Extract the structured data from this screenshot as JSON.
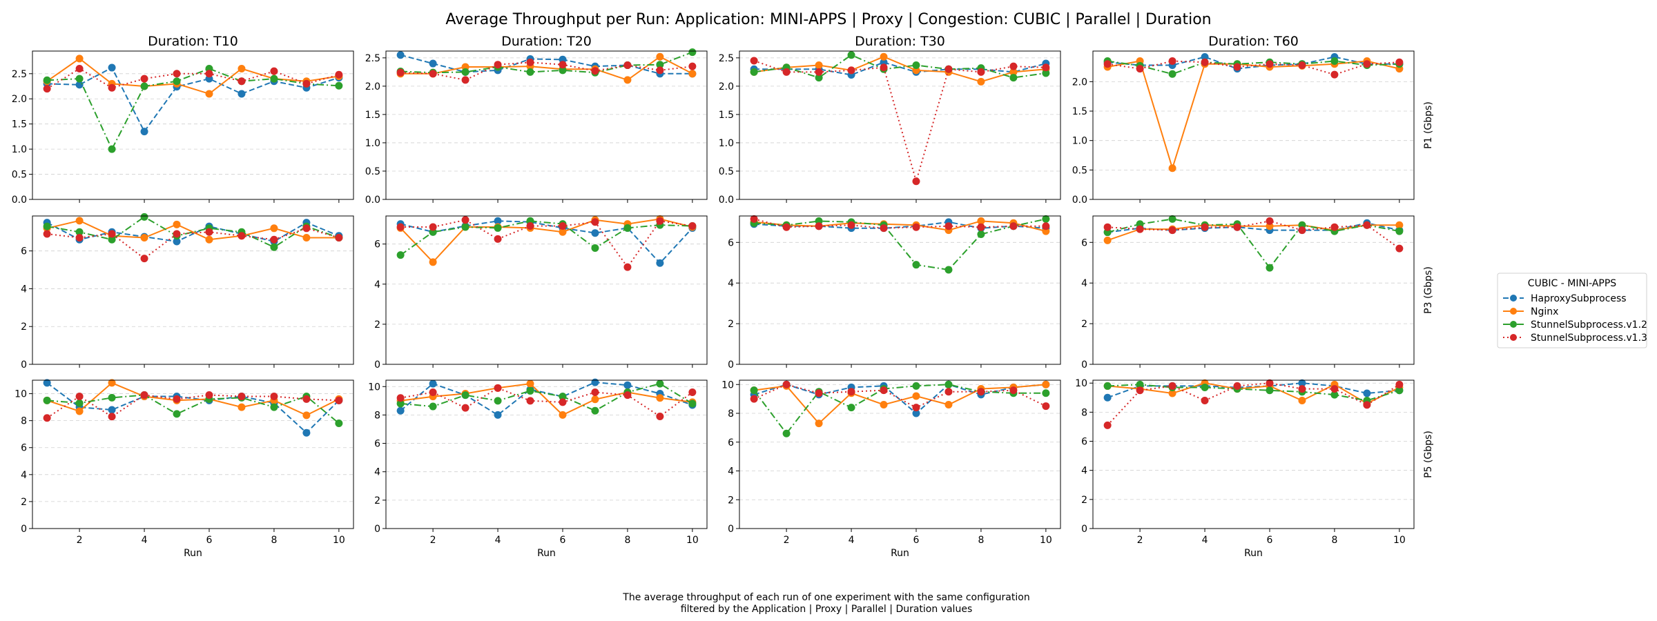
{
  "figure": {
    "title": "Average Throughput per Run: Application: MINI-APPS | Proxy | Congestion: CUBIC | Parallel | Duration",
    "caption_lines": [
      "The average throughput of each run of one experiment with the same configuration",
      "filtered by the Application | Proxy | Parallel | Duration values"
    ]
  },
  "legend": {
    "title": "CUBIC - MINI-APPS",
    "location": "right"
  },
  "chart_data": {
    "type": "line",
    "grid": "horizontal dashed",
    "column_titles": [
      "Duration: T10",
      "Duration: T20",
      "Duration: T30",
      "Duration: T60"
    ],
    "row_labels": [
      "P1 (Gbps)",
      "P3 (Gbps)",
      "P5 (Gbps)"
    ],
    "xlabel": "Run",
    "x": [
      1,
      2,
      3,
      4,
      5,
      6,
      7,
      8,
      9,
      10
    ],
    "x_ticks": [
      2,
      4,
      6,
      8,
      10
    ],
    "xlim": [
      0.55,
      10.45
    ],
    "series_styles": [
      {
        "name": "HaproxySubprocess",
        "color": "#1f77b4",
        "dash": "8,4"
      },
      {
        "name": "Nginx",
        "color": "#ff7f0e",
        "dash": ""
      },
      {
        "name": "StunnelSubprocess.v1.2",
        "color": "#2ca02c",
        "dash": "10,4,2,4"
      },
      {
        "name": "StunnelSubprocess.v1.3",
        "color": "#d62728",
        "dash": "2,4"
      }
    ],
    "panels": [
      {
        "row": 0,
        "col": 0,
        "ylim": [
          0,
          2.95
        ],
        "yticks": [
          "0.0",
          "0.5",
          "1.0",
          "1.5",
          "2.0",
          "2.5"
        ],
        "yvals": [
          0,
          0.5,
          1,
          1.5,
          2,
          2.5
        ],
        "series": [
          {
            "name": "HaproxySubprocess",
            "values": [
              2.3,
              2.28,
              2.62,
              1.35,
              2.24,
              2.4,
              2.1,
              2.35,
              2.22,
              2.42
            ]
          },
          {
            "name": "Nginx",
            "values": [
              2.35,
              2.8,
              2.3,
              2.25,
              2.3,
              2.1,
              2.6,
              2.4,
              2.35,
              2.45
            ]
          },
          {
            "name": "StunnelSubprocess.v1.2",
            "values": [
              2.37,
              2.4,
              1.0,
              2.25,
              2.35,
              2.6,
              2.35,
              2.4,
              2.3,
              2.26
            ]
          },
          {
            "name": "StunnelSubprocess.v1.3",
            "values": [
              2.2,
              2.6,
              2.22,
              2.4,
              2.5,
              2.5,
              2.35,
              2.55,
              2.3,
              2.48
            ]
          }
        ]
      },
      {
        "row": 0,
        "col": 1,
        "ylim": [
          0,
          2.62
        ],
        "yticks": [
          "0.0",
          "0.5",
          "1.0",
          "1.5",
          "2.0",
          "2.5"
        ],
        "yvals": [
          0,
          0.5,
          1,
          1.5,
          2,
          2.5
        ],
        "series": [
          {
            "name": "HaproxySubprocess",
            "values": [
              2.55,
              2.4,
              2.25,
              2.28,
              2.48,
              2.47,
              2.35,
              2.37,
              2.22,
              2.22
            ]
          },
          {
            "name": "Nginx",
            "values": [
              2.22,
              2.22,
              2.34,
              2.34,
              2.35,
              2.3,
              2.3,
              2.11,
              2.52,
              2.22
            ]
          },
          {
            "name": "StunnelSubprocess.v1.2",
            "values": [
              2.26,
              2.24,
              2.25,
              2.34,
              2.25,
              2.28,
              2.24,
              2.37,
              2.38,
              2.6
            ]
          },
          {
            "name": "StunnelSubprocess.v1.3",
            "values": [
              2.24,
              2.22,
              2.11,
              2.38,
              2.42,
              2.38,
              2.27,
              2.37,
              2.28,
              2.35
            ]
          }
        ]
      },
      {
        "row": 0,
        "col": 2,
        "ylim": [
          0,
          2.62
        ],
        "yticks": [
          "0.0",
          "0.5",
          "1.0",
          "1.5",
          "2.0",
          "2.5"
        ],
        "yvals": [
          0,
          0.5,
          1,
          1.5,
          2,
          2.5
        ],
        "series": [
          {
            "name": "HaproxySubprocess",
            "values": [
              2.3,
              2.3,
              2.3,
              2.2,
              2.42,
              2.25,
              2.3,
              2.3,
              2.25,
              2.4
            ]
          },
          {
            "name": "Nginx",
            "values": [
              2.25,
              2.33,
              2.37,
              2.28,
              2.52,
              2.28,
              2.25,
              2.08,
              2.25,
              2.3
            ]
          },
          {
            "name": "StunnelSubprocess.v1.2",
            "values": [
              2.25,
              2.33,
              2.15,
              2.55,
              2.3,
              2.37,
              2.3,
              2.32,
              2.15,
              2.23
            ]
          },
          {
            "name": "StunnelSubprocess.v1.3",
            "values": [
              2.45,
              2.25,
              2.25,
              2.28,
              2.33,
              0.32,
              2.3,
              2.25,
              2.35,
              2.33
            ]
          }
        ]
      },
      {
        "row": 0,
        "col": 3,
        "ylim": [
          0,
          2.52
        ],
        "yticks": [
          "0.0",
          "0.5",
          "1.0",
          "1.5",
          "2.0"
        ],
        "yvals": [
          0,
          0.5,
          1,
          1.5,
          2
        ],
        "series": [
          {
            "name": "HaproxySubprocess",
            "values": [
              2.33,
              2.28,
              2.28,
              2.42,
              2.22,
              2.28,
              2.3,
              2.42,
              2.3,
              2.3
            ]
          },
          {
            "name": "Nginx",
            "values": [
              2.25,
              2.35,
              0.53,
              2.3,
              2.3,
              2.25,
              2.27,
              2.3,
              2.35,
              2.22
            ]
          },
          {
            "name": "StunnelSubprocess.v1.2",
            "values": [
              2.35,
              2.27,
              2.13,
              2.33,
              2.3,
              2.33,
              2.3,
              2.35,
              2.28,
              2.3
            ]
          },
          {
            "name": "StunnelSubprocess.v1.3",
            "values": [
              2.3,
              2.22,
              2.35,
              2.33,
              2.25,
              2.3,
              2.28,
              2.12,
              2.3,
              2.33
            ]
          }
        ]
      },
      {
        "row": 1,
        "col": 0,
        "ylim": [
          0,
          7.85
        ],
        "yticks": [
          "0",
          "2",
          "4",
          "6"
        ],
        "yvals": [
          0,
          2,
          4,
          6
        ],
        "series": [
          {
            "name": "HaproxySubprocess",
            "values": [
              7.5,
              6.6,
              7.0,
              6.75,
              6.5,
              7.3,
              6.9,
              6.5,
              7.5,
              6.8
            ]
          },
          {
            "name": "Nginx",
            "values": [
              7.2,
              7.6,
              6.8,
              6.7,
              7.4,
              6.6,
              6.8,
              7.2,
              6.7,
              6.7
            ]
          },
          {
            "name": "StunnelSubprocess.v1.2",
            "values": [
              7.3,
              7.0,
              6.6,
              7.8,
              6.8,
              7.2,
              7.0,
              6.2,
              7.3,
              6.7
            ]
          },
          {
            "name": "StunnelSubprocess.v1.3",
            "values": [
              6.9,
              6.7,
              6.9,
              5.6,
              6.9,
              7.0,
              6.8,
              6.6,
              7.2,
              6.7
            ]
          }
        ]
      },
      {
        "row": 1,
        "col": 1,
        "ylim": [
          0,
          7.4
        ],
        "yticks": [
          "0",
          "2",
          "4",
          "6"
        ],
        "yvals": [
          0,
          2,
          4,
          6
        ],
        "series": [
          {
            "name": "HaproxySubprocess",
            "values": [
              7.0,
              6.6,
              6.9,
              7.15,
              7.1,
              6.8,
              6.55,
              6.8,
              5.05,
              6.8
            ]
          },
          {
            "name": "Nginx",
            "values": [
              6.8,
              5.1,
              6.85,
              6.85,
              6.8,
              6.6,
              7.2,
              7.0,
              7.25,
              6.85
            ]
          },
          {
            "name": "StunnelSubprocess.v1.2",
            "values": [
              5.45,
              6.6,
              6.85,
              6.8,
              7.15,
              7.0,
              5.8,
              6.8,
              6.95,
              6.9
            ]
          },
          {
            "name": "StunnelSubprocess.v1.3",
            "values": [
              6.85,
              6.85,
              7.2,
              6.25,
              6.9,
              6.9,
              7.1,
              4.85,
              7.15,
              6.9
            ]
          }
        ]
      },
      {
        "row": 1,
        "col": 2,
        "ylim": [
          0,
          7.3
        ],
        "yticks": [
          "0",
          "2",
          "4",
          "6"
        ],
        "yvals": [
          0,
          2,
          4,
          6
        ],
        "series": [
          {
            "name": "HaproxySubprocess",
            "values": [
              6.9,
              6.8,
              6.8,
              6.7,
              6.7,
              6.8,
              7.0,
              6.7,
              6.8,
              6.7
            ]
          },
          {
            "name": "Nginx",
            "values": [
              7.0,
              6.85,
              6.8,
              6.95,
              6.9,
              6.85,
              6.6,
              7.05,
              6.95,
              6.55
            ]
          },
          {
            "name": "StunnelSubprocess.v1.2",
            "values": [
              6.95,
              6.85,
              7.05,
              7.0,
              6.85,
              4.9,
              4.65,
              6.4,
              6.8,
              7.15
            ]
          },
          {
            "name": "StunnelSubprocess.v1.3",
            "values": [
              7.15,
              6.75,
              6.8,
              6.85,
              6.7,
              6.75,
              6.8,
              6.75,
              6.8,
              6.8
            ]
          }
        ]
      },
      {
        "row": 1,
        "col": 3,
        "ylim": [
          0,
          7.3
        ],
        "yticks": [
          "0",
          "2",
          "4",
          "6"
        ],
        "yvals": [
          0,
          2,
          4,
          6
        ],
        "series": [
          {
            "name": "HaproxySubprocess",
            "values": [
              6.5,
              6.7,
              6.6,
              6.7,
              6.75,
              6.6,
              6.6,
              6.6,
              6.95,
              6.6
            ]
          },
          {
            "name": "Nginx",
            "values": [
              6.1,
              6.65,
              6.65,
              6.85,
              6.8,
              6.8,
              6.85,
              6.6,
              6.85,
              6.85
            ]
          },
          {
            "name": "StunnelSubprocess.v1.2",
            "values": [
              6.5,
              6.9,
              7.15,
              6.85,
              6.9,
              4.75,
              6.85,
              6.55,
              6.85,
              6.55
            ]
          },
          {
            "name": "StunnelSubprocess.v1.3",
            "values": [
              6.75,
              6.65,
              6.6,
              6.75,
              6.75,
              7.05,
              6.6,
              6.75,
              6.85,
              5.7
            ]
          }
        ]
      },
      {
        "row": 2,
        "col": 0,
        "ylim": [
          0,
          11.0
        ],
        "yticks": [
          "0",
          "2",
          "4",
          "6",
          "8",
          "10"
        ],
        "yvals": [
          0,
          2,
          4,
          6,
          8,
          10
        ],
        "series": [
          {
            "name": "HaproxySubprocess",
            "values": [
              10.8,
              9.0,
              8.8,
              9.8,
              9.8,
              9.5,
              9.8,
              9.3,
              7.1,
              9.5
            ]
          },
          {
            "name": "Nginx",
            "values": [
              9.5,
              8.7,
              10.8,
              9.8,
              9.5,
              9.6,
              9.0,
              9.5,
              8.4,
              9.6
            ]
          },
          {
            "name": "StunnelSubprocess.v1.2",
            "values": [
              9.5,
              9.3,
              9.7,
              9.9,
              8.5,
              9.6,
              9.7,
              9.0,
              9.8,
              7.8
            ]
          },
          {
            "name": "StunnelSubprocess.v1.3",
            "values": [
              8.2,
              9.8,
              8.3,
              9.9,
              9.6,
              9.9,
              9.8,
              9.8,
              9.6,
              9.5
            ]
          }
        ]
      },
      {
        "row": 2,
        "col": 1,
        "ylim": [
          0,
          10.45
        ],
        "yticks": [
          "0",
          "2",
          "4",
          "6",
          "8",
          "10"
        ],
        "yvals": [
          0,
          2,
          4,
          6,
          8,
          10
        ],
        "series": [
          {
            "name": "HaproxySubprocess",
            "values": [
              8.3,
              10.2,
              9.4,
              8.0,
              9.8,
              9.3,
              10.3,
              10.1,
              9.5,
              8.7
            ]
          },
          {
            "name": "Nginx",
            "values": [
              9.0,
              9.3,
              9.5,
              9.9,
              10.2,
              8.0,
              9.1,
              9.6,
              9.2,
              8.9
            ]
          },
          {
            "name": "StunnelSubprocess.v1.2",
            "values": [
              8.8,
              8.6,
              9.4,
              9.0,
              9.7,
              9.3,
              8.3,
              9.6,
              10.2,
              8.8
            ]
          },
          {
            "name": "StunnelSubprocess.v1.3",
            "values": [
              9.2,
              9.6,
              8.5,
              9.9,
              9.0,
              8.9,
              9.6,
              9.4,
              7.9,
              9.6
            ]
          }
        ]
      },
      {
        "row": 2,
        "col": 2,
        "ylim": [
          0,
          10.3
        ],
        "yticks": [
          "0",
          "2",
          "4",
          "6",
          "8",
          "10"
        ],
        "yvals": [
          0,
          2,
          4,
          6,
          8,
          10
        ],
        "series": [
          {
            "name": "HaproxySubprocess",
            "values": [
              9.3,
              10.0,
              9.3,
              9.8,
              9.9,
              8.0,
              10.0,
              9.3,
              9.8,
              10.0
            ]
          },
          {
            "name": "Nginx",
            "values": [
              9.6,
              9.9,
              7.3,
              9.4,
              8.6,
              9.2,
              8.6,
              9.7,
              9.8,
              10.0
            ]
          },
          {
            "name": "StunnelSubprocess.v1.2",
            "values": [
              9.6,
              6.6,
              9.5,
              8.4,
              9.7,
              9.9,
              10.0,
              9.5,
              9.4,
              9.4
            ]
          },
          {
            "name": "StunnelSubprocess.v1.3",
            "values": [
              9.0,
              10.0,
              9.4,
              9.5,
              9.6,
              8.4,
              9.5,
              9.5,
              9.6,
              8.5
            ]
          }
        ]
      },
      {
        "row": 2,
        "col": 3,
        "ylim": [
          0,
          10.2
        ],
        "yticks": [
          "0",
          "2",
          "4",
          "6",
          "8",
          "10"
        ],
        "yvals": [
          0,
          2,
          4,
          6,
          8,
          10
        ],
        "series": [
          {
            "name": "HaproxySubprocess",
            "values": [
              9.0,
              9.8,
              9.8,
              9.8,
              9.7,
              9.8,
              10.0,
              9.8,
              9.3,
              9.5
            ]
          },
          {
            "name": "Nginx",
            "values": [
              9.8,
              9.6,
              9.3,
              10.0,
              9.6,
              9.8,
              8.8,
              9.9,
              8.6,
              9.7
            ]
          },
          {
            "name": "StunnelSubprocess.v1.2",
            "values": [
              9.8,
              9.9,
              9.7,
              9.7,
              9.6,
              9.5,
              9.4,
              9.2,
              8.8,
              9.5
            ]
          },
          {
            "name": "StunnelSubprocess.v1.3",
            "values": [
              7.1,
              9.5,
              9.8,
              8.8,
              9.8,
              10.0,
              9.6,
              9.6,
              8.5,
              9.9
            ]
          }
        ]
      }
    ]
  }
}
